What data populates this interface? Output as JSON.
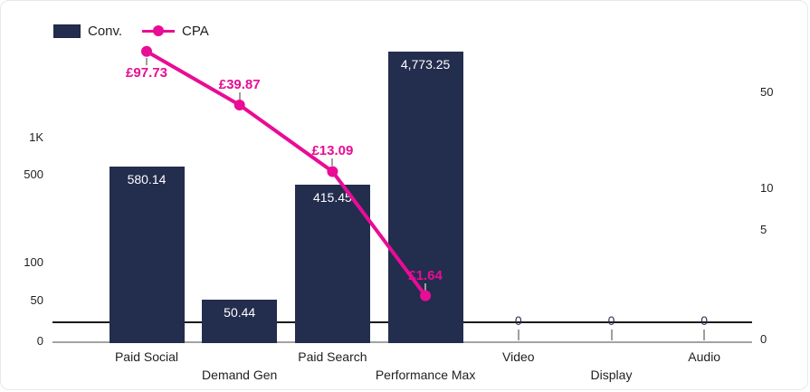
{
  "card": {
    "background": "#ffffff"
  },
  "legend": {
    "position": "top-left",
    "items": [
      {
        "label": "Conv.",
        "marker": "bar-swatch"
      },
      {
        "label": "CPA",
        "marker": "line-dot"
      }
    ]
  },
  "colors": {
    "bar": "#232d4e",
    "line": "#e90c95",
    "connector": "#9e9e9e",
    "axis_text": "#1f1f1f",
    "zero_label": "#26304f"
  },
  "chart_data": {
    "type": "combo-bar-line",
    "categories": [
      "Paid Social",
      "Demand Gen",
      "Paid Search",
      "Performance Max",
      "Video",
      "Display",
      "Audio"
    ],
    "series": [
      {
        "name": "Conv.",
        "type": "bar",
        "axis": "left",
        "color": "#232d4e",
        "values": [
          580.14,
          50.44,
          415.45,
          4773.25,
          0,
          0,
          0
        ],
        "labels": [
          "580.14",
          "50.44",
          "415.45",
          "4,773.25",
          "0",
          "0",
          "0"
        ]
      },
      {
        "name": "CPA",
        "type": "line",
        "axis": "right",
        "color": "#e90c95",
        "values": [
          97.73,
          39.87,
          13.09,
          1.64,
          null,
          null,
          null
        ],
        "labels": [
          "£97.73",
          "£39.87",
          "£13.09",
          "£1.64"
        ]
      }
    ],
    "left_axis": {
      "scale": "log",
      "ticks": [
        {
          "label": "1K",
          "value": 1000
        },
        {
          "label": "500",
          "value": 500
        },
        {
          "label": "100",
          "value": 100
        },
        {
          "label": "50",
          "value": 50
        },
        {
          "label": "0",
          "value": 0
        }
      ]
    },
    "right_axis": {
      "scale": "log",
      "ticks": [
        {
          "label": "50",
          "value": 50
        },
        {
          "label": "10",
          "value": 10
        },
        {
          "label": "5",
          "value": 5
        },
        {
          "label": "0",
          "value": 0
        }
      ]
    },
    "legend_position": "top-left",
    "grid": "off"
  }
}
